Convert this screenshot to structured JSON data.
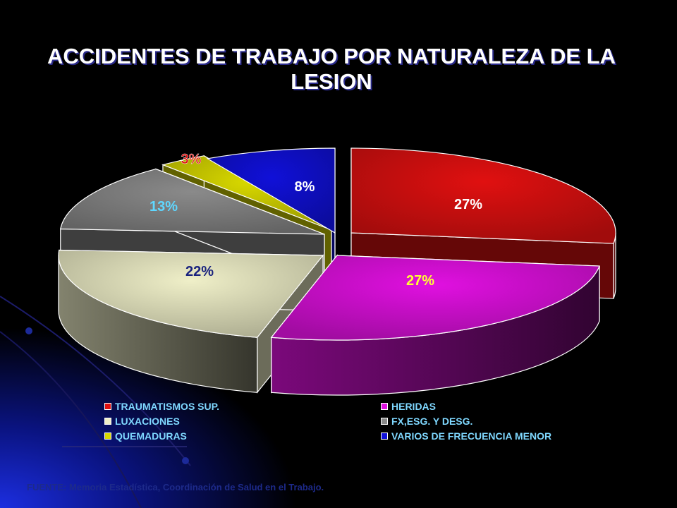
{
  "slide": {
    "title": "ACCIDENTES DE TRABAJO POR NATURALEZA DE LA LESION",
    "source": "FUENTE: Memoria Estadística, Coordinación de Salud en el Trabajo."
  },
  "chart_data": {
    "type": "pie",
    "title": "ACCIDENTES DE TRABAJO POR NATURALEZA DE LA LESION",
    "style": "3d-exploded",
    "legend_position": "bottom",
    "slices": [
      {
        "name": "TRAUMATISMOS SUP.",
        "value": 27,
        "label": "27%",
        "color": "#e01010",
        "label_color": "#ffffff"
      },
      {
        "name": "HERIDAS",
        "value": 27,
        "label": "27%",
        "color": "#e010e0",
        "label_color": "#ffff33"
      },
      {
        "name": "LUXACIONES",
        "value": 22,
        "label": "22%",
        "color": "#efefc8",
        "label_color": "#1a237e"
      },
      {
        "name": "FX,ESG. Y DESG.",
        "value": 13,
        "label": "13%",
        "color": "#8a8a8a",
        "label_color": "#5fd7ff"
      },
      {
        "name": "QUEMADURAS",
        "value": 3,
        "label": "3%",
        "color": "#d8d800",
        "label_color": "#e01010"
      },
      {
        "name": "VARIOS DE FRECUENCIA MENOR",
        "value": 8,
        "label": "8%",
        "color": "#1010d8",
        "label_color": "#ffffff"
      }
    ]
  }
}
